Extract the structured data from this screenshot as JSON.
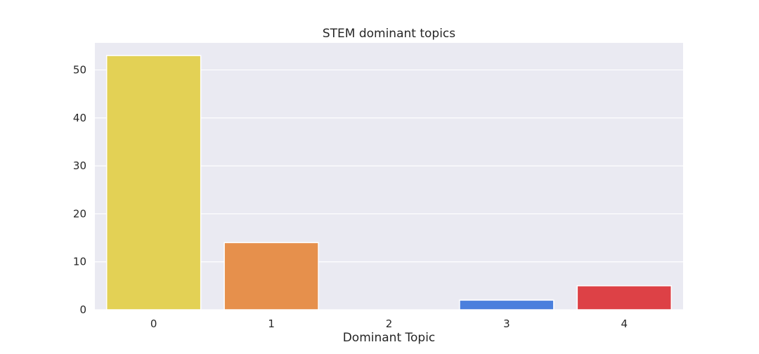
{
  "chart_data": {
    "type": "bar",
    "title": "STEM dominant topics",
    "xlabel": "Dominant Topic",
    "ylabel": "",
    "categories": [
      "0",
      "1",
      "2",
      "3",
      "4"
    ],
    "values": [
      53,
      14,
      0,
      2,
      5
    ],
    "colors": [
      "#e3d155",
      "#e6904c",
      "#c9c9c9",
      "#4b7fdd",
      "#dd4146"
    ],
    "ylim": [
      0,
      55.65
    ],
    "yticks": [
      0,
      10,
      20,
      30,
      40,
      50
    ],
    "grid": true,
    "background": "#eaeaf2",
    "gridColor": "#ffffff"
  }
}
